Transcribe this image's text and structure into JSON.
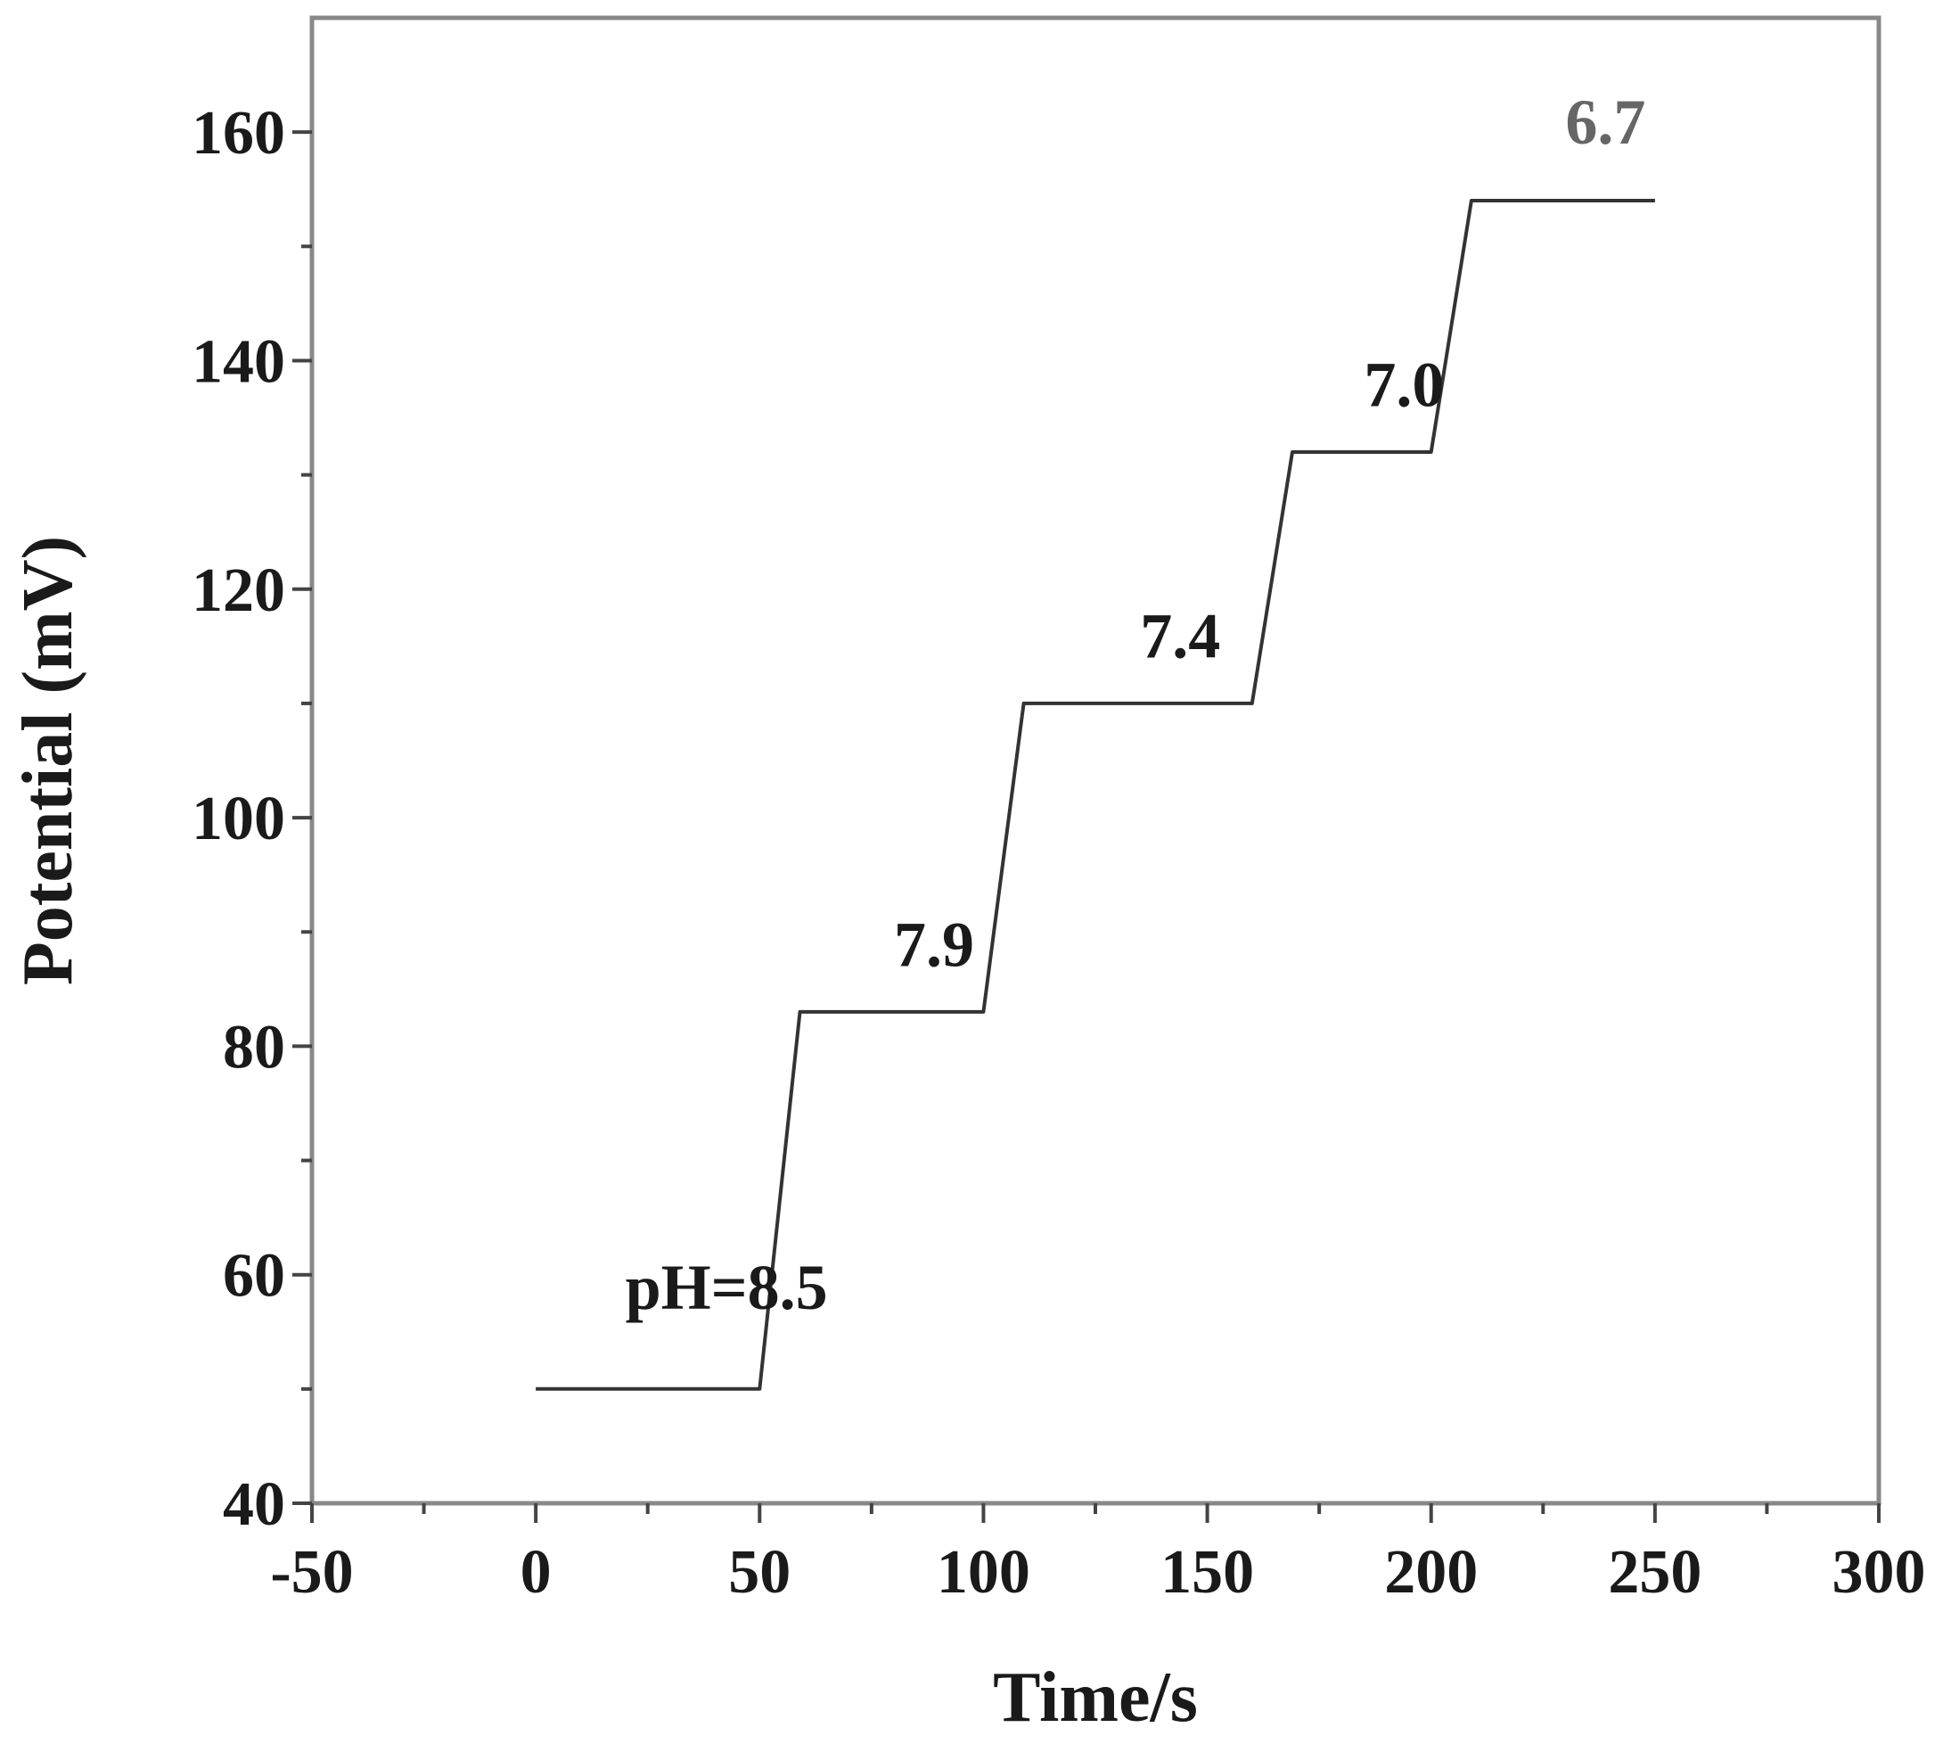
{
  "chart_data": {
    "type": "line",
    "title": "",
    "xlabel": "Time/s",
    "ylabel": "Potential (mV)",
    "xlim": [
      -50,
      300
    ],
    "ylim": [
      40,
      170
    ],
    "x_ticks_major": [
      -50,
      0,
      50,
      100,
      150,
      200,
      250,
      300
    ],
    "x_ticks_minor": [
      -25,
      25,
      75,
      125,
      175,
      225,
      275
    ],
    "y_ticks_major": [
      40,
      60,
      80,
      100,
      120,
      140,
      160
    ],
    "y_ticks_minor": [
      50,
      70,
      90,
      110,
      130,
      150
    ],
    "grid": false,
    "series": [
      {
        "x": [
          0,
          50,
          59,
          100,
          109,
          160,
          169,
          200,
          209,
          250
        ],
        "y": [
          50,
          50,
          83,
          83,
          110,
          110,
          132,
          132,
          154,
          154
        ]
      }
    ],
    "annotations": [
      {
        "text": "pH=8.5",
        "x": 20,
        "y": 57
      },
      {
        "text": "7.9",
        "x": 80,
        "y": 87
      },
      {
        "text": "7.4",
        "x": 135,
        "y": 114
      },
      {
        "text": "7.0",
        "x": 185,
        "y": 136
      },
      {
        "text": "6.7",
        "x": 230,
        "y": 159
      }
    ]
  }
}
